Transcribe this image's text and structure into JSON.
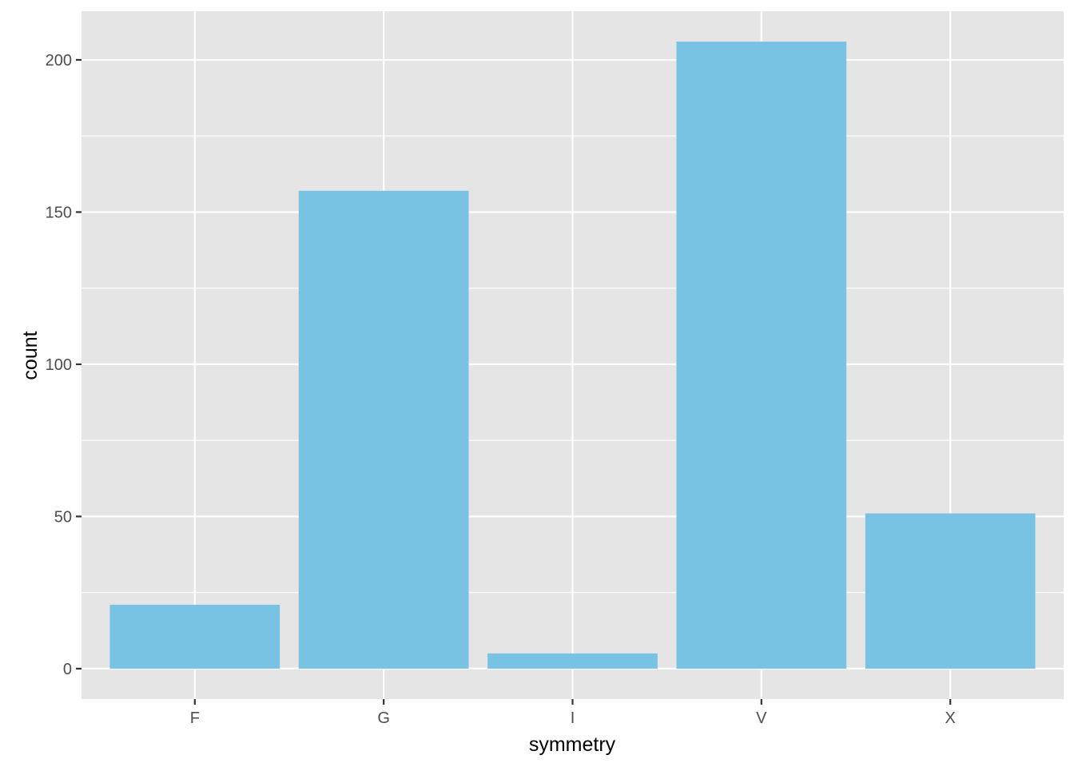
{
  "chart_data": {
    "type": "bar",
    "categories": [
      "F",
      "G",
      "I",
      "V",
      "X"
    ],
    "values": [
      21,
      157,
      5,
      206,
      51
    ],
    "xlabel": "symmetry",
    "ylabel": "count",
    "ylim": [
      -10,
      216
    ],
    "yticks": [
      0,
      50,
      100,
      150,
      200
    ],
    "grid": true,
    "bar_color": "#78c2e4",
    "panel_color": "#e5e5e5",
    "grid_color": "#ffffff"
  }
}
